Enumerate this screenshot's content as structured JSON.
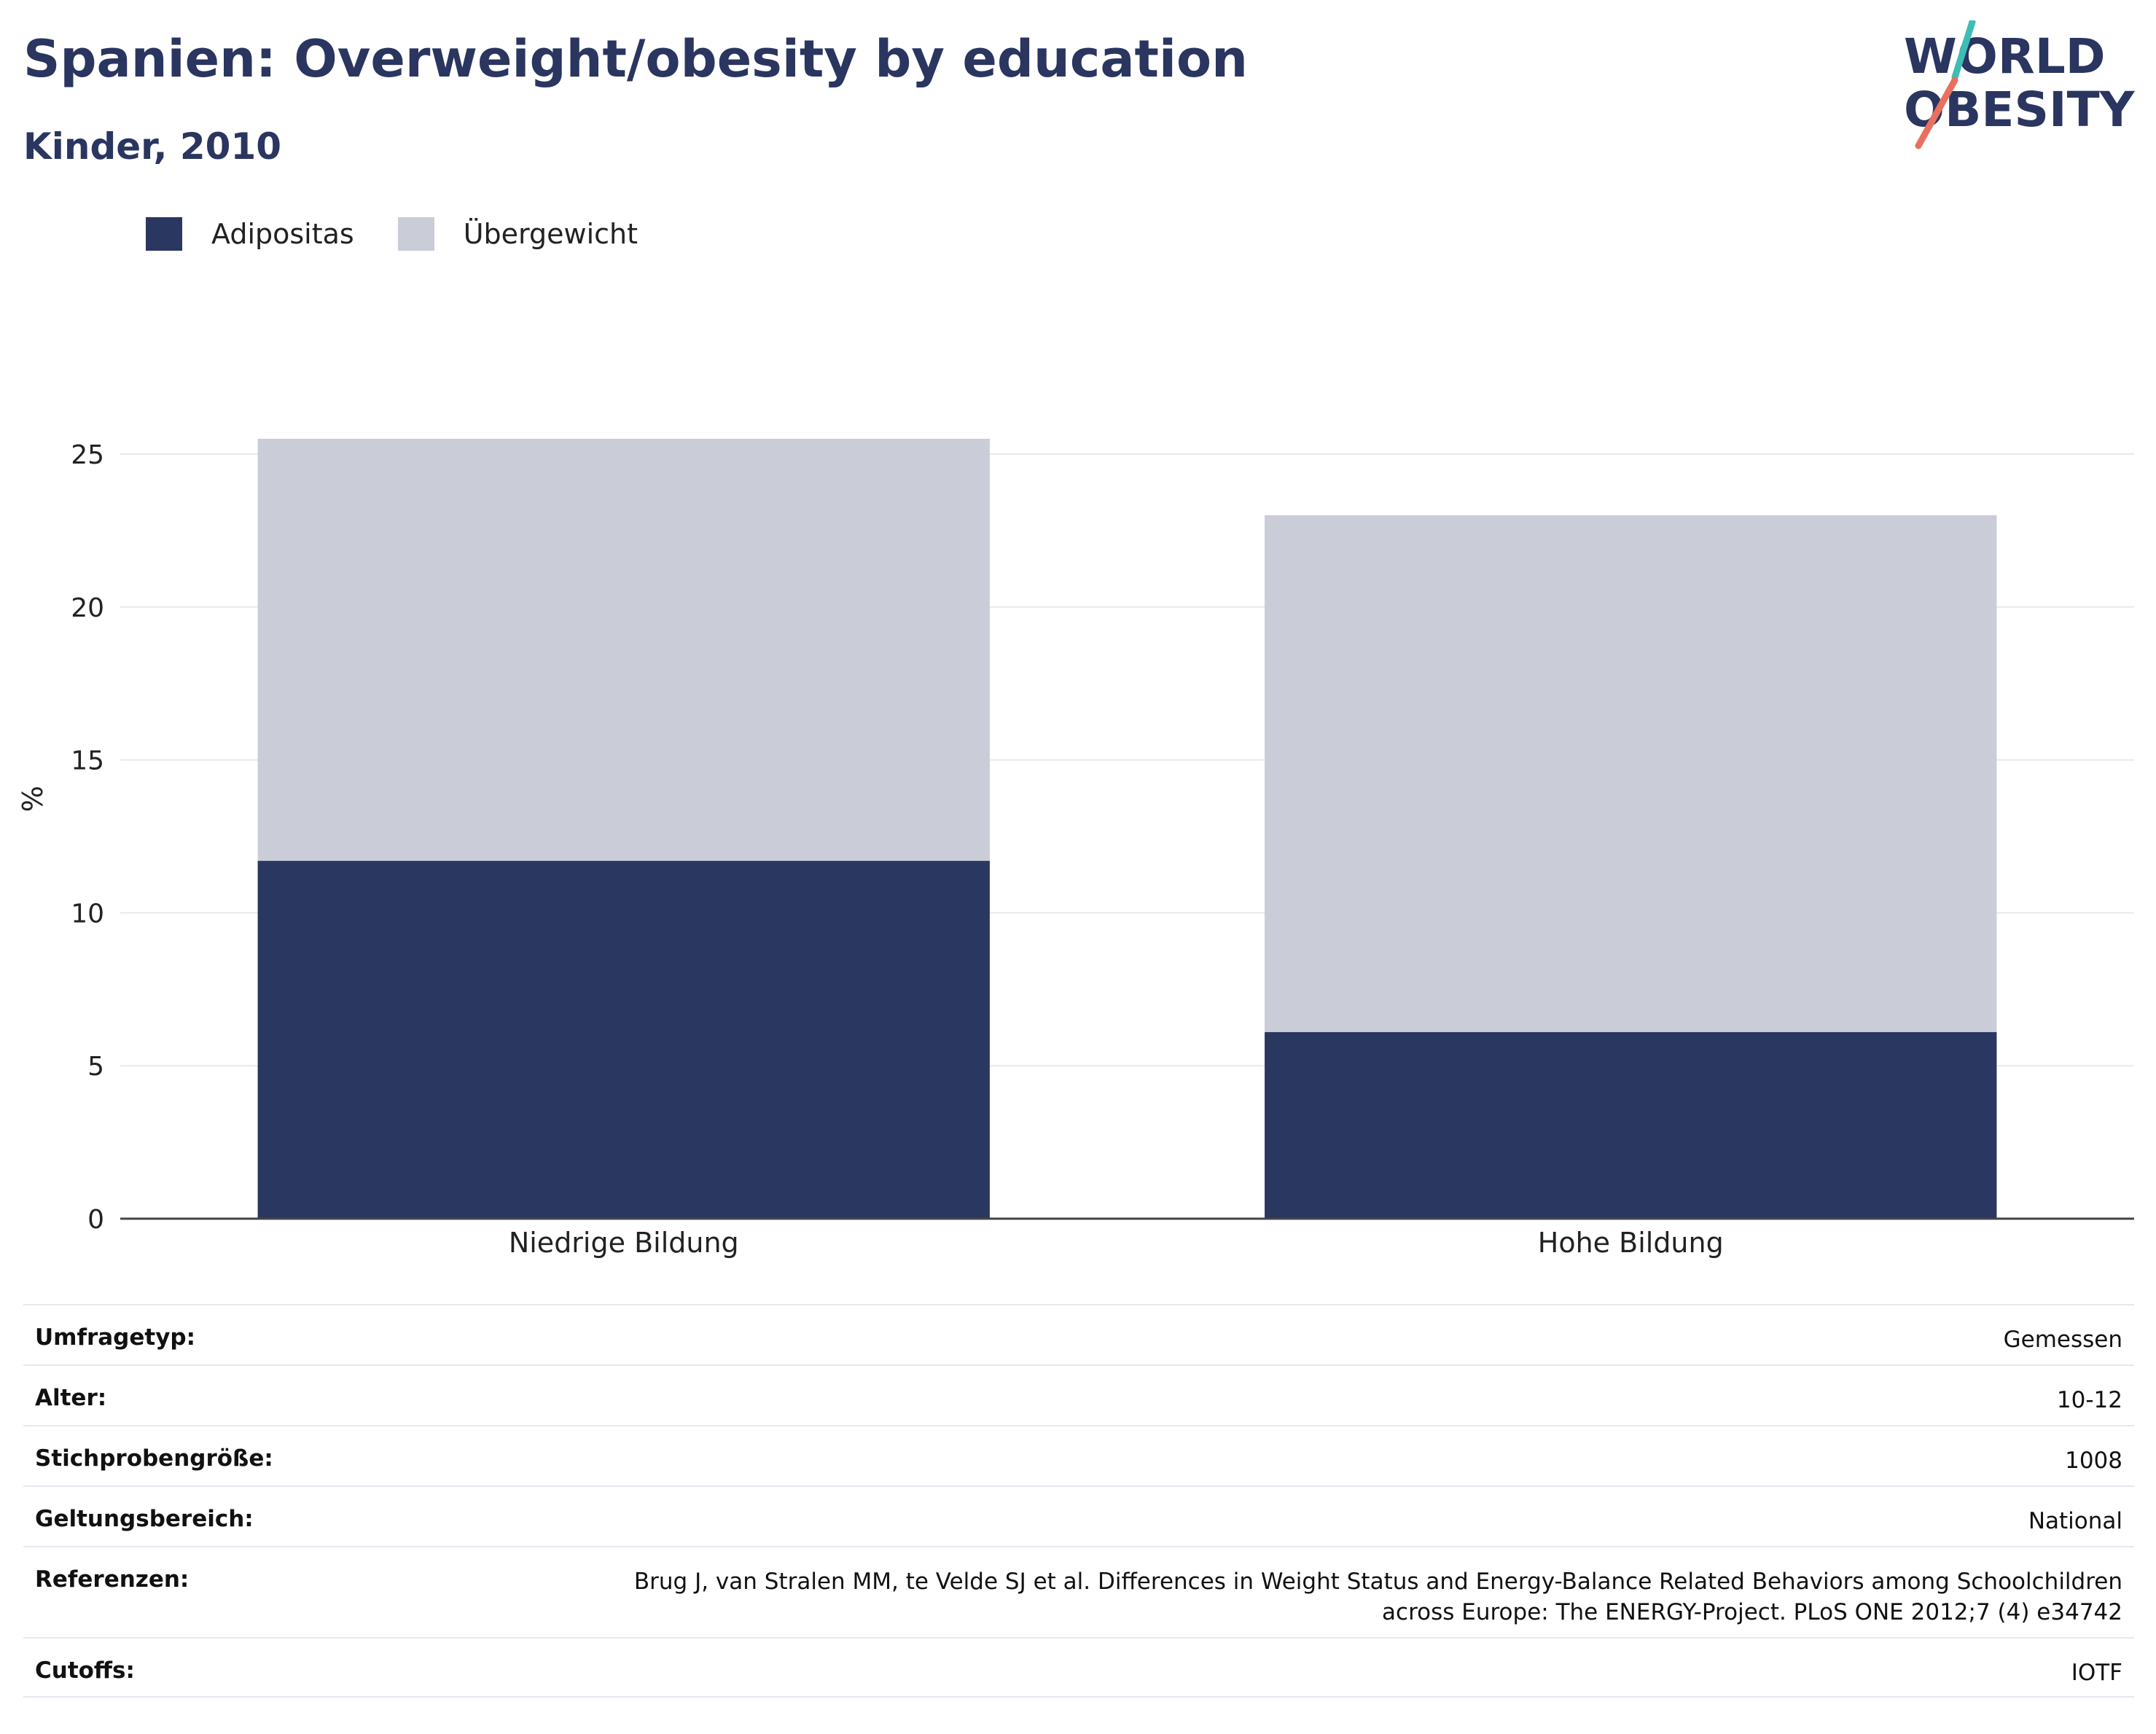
{
  "title": "Spanien: Overweight/obesity by education",
  "subtitle": "Kinder, 2010",
  "logo": {
    "line1": "WORLD",
    "line2": "OBESITY",
    "accent_teal": "#3dbdb5",
    "accent_red": "#e8705f"
  },
  "colors": {
    "adipositas": "#2a3761",
    "uebergewicht": "#cacdd8",
    "text": "#2a3560"
  },
  "chart_data": {
    "type": "bar",
    "stacked": true,
    "categories": [
      "Niedrige Bildung",
      "Hohe Bildung"
    ],
    "series": [
      {
        "name": "Adipositas",
        "values": [
          11.7,
          6.1
        ]
      },
      {
        "name": "Übergewicht",
        "values": [
          13.8,
          16.9
        ]
      }
    ],
    "ylabel": "%",
    "ylim": [
      0,
      26.5
    ],
    "yticks": [
      0,
      5,
      10,
      15,
      20,
      25
    ],
    "grid": true,
    "legend": "top-left"
  },
  "meta": [
    {
      "label": "Umfragetyp:",
      "value": [
        "Gemessen"
      ]
    },
    {
      "label": "Alter:",
      "value": [
        "10-12"
      ]
    },
    {
      "label": "Stichprobengröße:",
      "value": [
        "1008"
      ]
    },
    {
      "label": "Geltungsbereich:",
      "value": [
        "National"
      ]
    },
    {
      "label": "Referenzen:",
      "value": [
        "Brug J, van Stralen MM, te Velde SJ et al. Differences in Weight Status and Energy-Balance Related Behaviors among Schoolchildren",
        "across Europe: The ENERGY-Project. PLoS ONE 2012;7 (4) e34742"
      ]
    },
    {
      "label": "Cutoffs:",
      "value": [
        "IOTF"
      ]
    }
  ]
}
